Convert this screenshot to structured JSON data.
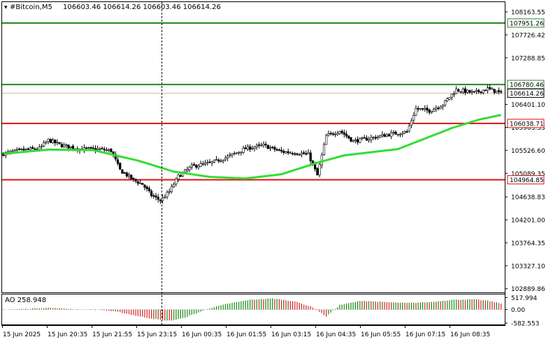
{
  "header": {
    "symbol_timeframe": "#Bitcoin,M5",
    "ohlc": "106603.46 106614.26 106603.46 106614.26"
  },
  "colors": {
    "candle": "#000000",
    "ma": "#33dd33",
    "resistance": "#228822",
    "support": "#dd1111",
    "ao_up": "#118811",
    "ao_down": "#cc2222",
    "grid_crosshair": "#000000",
    "price_box_bg": "#ffffff",
    "last_price_line": "#bbbbbb"
  },
  "chart_data": [
    {
      "type": "candlestick",
      "y_ticks": [
        "108163.55",
        "107726.42",
        "107288.85",
        "106401.10",
        "105963.53",
        "105526.60",
        "105089.35",
        "104638.83",
        "104201.00",
        "103764.35",
        "103327.10",
        "102889.86"
      ],
      "x_ticks": [
        "15 Jun 2025",
        "15 Jun 20:35",
        "15 Jun 21:55",
        "15 Jun 23:15",
        "16 Jun 00:35",
        "16 Jun 01:55",
        "16 Jun 03:15",
        "16 Jun 04:35",
        "16 Jun 05:55",
        "16 Jun 07:15",
        "16 Jun 08:35"
      ],
      "ylim": [
        102820,
        108350
      ],
      "last_price": {
        "label": "106614.26",
        "value": 106614.26
      },
      "levels": [
        {
          "label": "107951.26",
          "value": 107951.26,
          "kind": "resistance"
        },
        {
          "label": "106780.46",
          "value": 106780.46,
          "kind": "resistance"
        },
        {
          "label": "106038.71",
          "value": 106038.71,
          "kind": "support"
        },
        {
          "label": "104964.85",
          "value": 104964.85,
          "kind": "support"
        }
      ],
      "close_anchors": [
        [
          0,
          105460
        ],
        [
          8,
          105530
        ],
        [
          16,
          105560
        ],
        [
          20,
          105720
        ],
        [
          26,
          105620
        ],
        [
          34,
          105550
        ],
        [
          42,
          105550
        ],
        [
          48,
          105520
        ],
        [
          52,
          105150
        ],
        [
          58,
          104960
        ],
        [
          62,
          104880
        ],
        [
          66,
          104670
        ],
        [
          70,
          104570
        ],
        [
          74,
          104740
        ],
        [
          78,
          105030
        ],
        [
          84,
          105220
        ],
        [
          92,
          105280
        ],
        [
          100,
          105400
        ],
        [
          108,
          105560
        ],
        [
          116,
          105620
        ],
        [
          124,
          105500
        ],
        [
          130,
          105480
        ],
        [
          136,
          105450
        ],
        [
          140,
          105050
        ],
        [
          144,
          105800
        ],
        [
          150,
          105900
        ],
        [
          156,
          105700
        ],
        [
          164,
          105760
        ],
        [
          172,
          105830
        ],
        [
          180,
          105880
        ],
        [
          184,
          106320
        ],
        [
          190,
          106280
        ],
        [
          196,
          106400
        ],
        [
          202,
          106680
        ],
        [
          210,
          106620
        ],
        [
          216,
          106700
        ],
        [
          222,
          106614.26
        ]
      ],
      "ma_anchors": [
        [
          0,
          105460
        ],
        [
          20,
          105540
        ],
        [
          40,
          105530
        ],
        [
          60,
          105330
        ],
        [
          76,
          105120
        ],
        [
          92,
          105020
        ],
        [
          108,
          104990
        ],
        [
          124,
          105070
        ],
        [
          140,
          105290
        ],
        [
          152,
          105430
        ],
        [
          164,
          105490
        ],
        [
          176,
          105550
        ],
        [
          188,
          105750
        ],
        [
          200,
          105950
        ],
        [
          212,
          106110
        ],
        [
          222,
          106200
        ]
      ]
    },
    {
      "type": "bar",
      "indicator_label": "AO 258.948",
      "y_ticks": [
        "517.994",
        "0.00",
        "-582.553"
      ],
      "ylim": [
        -640,
        620
      ],
      "anchors": [
        [
          0,
          0
        ],
        [
          12,
          40
        ],
        [
          20,
          80
        ],
        [
          28,
          40
        ],
        [
          36,
          0
        ],
        [
          44,
          -20
        ],
        [
          52,
          -120
        ],
        [
          60,
          -280
        ],
        [
          68,
          -420
        ],
        [
          74,
          -480
        ],
        [
          80,
          -380
        ],
        [
          86,
          -160
        ],
        [
          92,
          60
        ],
        [
          100,
          250
        ],
        [
          110,
          420
        ],
        [
          120,
          480
        ],
        [
          130,
          350
        ],
        [
          138,
          100
        ],
        [
          144,
          -300
        ],
        [
          150,
          200
        ],
        [
          160,
          380
        ],
        [
          170,
          320
        ],
        [
          180,
          280
        ],
        [
          190,
          320
        ],
        [
          200,
          420
        ],
        [
          210,
          440
        ],
        [
          216,
          380
        ],
        [
          222,
          260
        ]
      ]
    }
  ]
}
